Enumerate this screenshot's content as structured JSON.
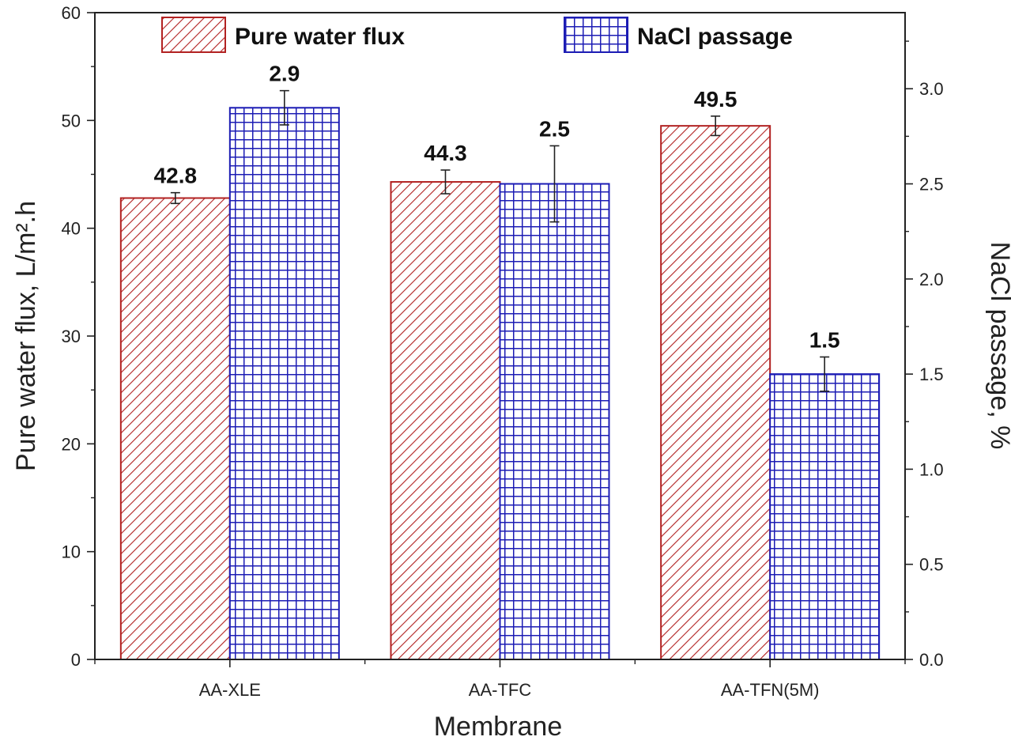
{
  "chart_data": {
    "type": "bar",
    "categories": [
      "AA-XLE",
      "AA-TFC",
      "AA-TFN(5M)"
    ],
    "xlabel": "Membrane",
    "ylabel": "Pure water flux, L/m².h",
    "y2label": "NaCl passage, %",
    "ylim": [
      0,
      60
    ],
    "y2lim": [
      0,
      3.4
    ],
    "yticks": [
      0,
      10,
      20,
      30,
      40,
      50,
      60
    ],
    "y2ticks": [
      "0.0",
      "0.5",
      "1.0",
      "1.5",
      "2.0",
      "2.5",
      "3.0"
    ],
    "grid": false,
    "legend_position": "top",
    "series": [
      {
        "name": "Pure water flux",
        "axis": "left",
        "values": [
          42.8,
          44.3,
          49.5
        ],
        "labels": [
          "42.8",
          "44.3",
          "49.5"
        ],
        "errors": [
          0.5,
          1.1,
          0.9
        ],
        "color": "#b22222",
        "pattern": "diagonal-hatch"
      },
      {
        "name": "NaCl passage",
        "axis": "right",
        "values": [
          2.9,
          2.5,
          1.5
        ],
        "labels": [
          "2.9",
          "2.5",
          "1.5"
        ],
        "errors": [
          0.09,
          0.2,
          0.09
        ],
        "color": "#1c1cb4",
        "pattern": "grid-hatch"
      }
    ]
  }
}
